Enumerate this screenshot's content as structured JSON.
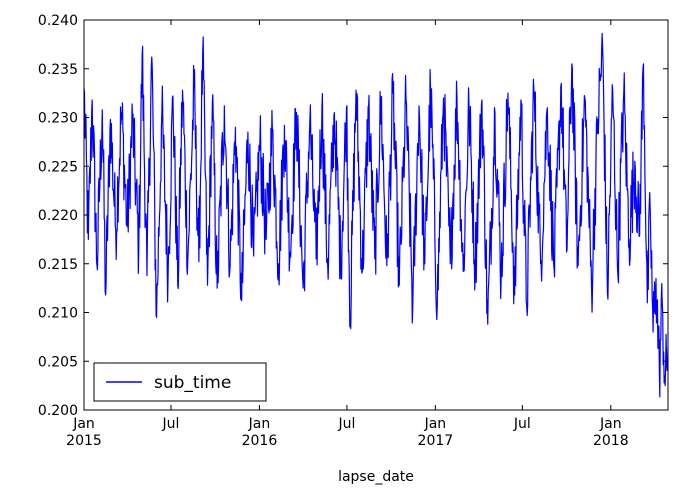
{
  "chart_data": {
    "type": "line",
    "title": "",
    "xlabel": "lapse_date",
    "ylabel": "",
    "x_start": "2015-01-01",
    "x_end": "2018-04-30",
    "x_ticks": [
      {
        "date": "2015-01-01",
        "label": "Jan",
        "label2": "2015"
      },
      {
        "date": "2015-07-01",
        "label": "Jul",
        "label2": ""
      },
      {
        "date": "2016-01-01",
        "label": "Jan",
        "label2": "2016"
      },
      {
        "date": "2016-07-01",
        "label": "Jul",
        "label2": ""
      },
      {
        "date": "2017-01-01",
        "label": "Jan",
        "label2": "2017"
      },
      {
        "date": "2017-07-01",
        "label": "Jul",
        "label2": ""
      },
      {
        "date": "2018-01-01",
        "label": "Jan",
        "label2": "2018"
      }
    ],
    "ylim": [
      0.2,
      0.24
    ],
    "y_ticks": [
      "0.200",
      "0.205",
      "0.210",
      "0.215",
      "0.220",
      "0.225",
      "0.230",
      "0.235",
      "0.240"
    ],
    "grid": false,
    "legend": {
      "position": "lower-left",
      "entries": [
        "sub_time"
      ]
    },
    "series": [
      {
        "name": "sub_time",
        "color": "#0000ff",
        "frequency": "daily",
        "points": [
          [
            "2015-01-01",
            0.233
          ],
          [
            "2015-01-10",
            0.2175
          ],
          [
            "2015-01-18",
            0.2318
          ],
          [
            "2015-01-28",
            0.2148
          ],
          [
            "2015-02-08",
            0.2308
          ],
          [
            "2015-02-15",
            0.2118
          ],
          [
            "2015-02-25",
            0.2298
          ],
          [
            "2015-03-08",
            0.2185
          ],
          [
            "2015-03-20",
            0.2305
          ],
          [
            "2015-04-01",
            0.2188
          ],
          [
            "2015-04-12",
            0.2298
          ],
          [
            "2015-04-25",
            0.2165
          ],
          [
            "2015-05-02",
            0.2365
          ],
          [
            "2015-05-12",
            0.2138
          ],
          [
            "2015-05-22",
            0.2362
          ],
          [
            "2015-06-01",
            0.2095
          ],
          [
            "2015-06-12",
            0.2305
          ],
          [
            "2015-06-25",
            0.214
          ],
          [
            "2015-07-05",
            0.2322
          ],
          [
            "2015-07-15",
            0.2128
          ],
          [
            "2015-07-25",
            0.2328
          ],
          [
            "2015-08-05",
            0.2155
          ],
          [
            "2015-08-18",
            0.233
          ],
          [
            "2015-08-28",
            0.2152
          ],
          [
            "2015-09-05",
            0.2368
          ],
          [
            "2015-09-15",
            0.2128
          ],
          [
            "2015-09-25",
            0.2315
          ],
          [
            "2015-10-05",
            0.2125
          ],
          [
            "2015-10-20",
            0.2312
          ],
          [
            "2015-11-01",
            0.2148
          ],
          [
            "2015-11-12",
            0.229
          ],
          [
            "2015-11-25",
            0.2112
          ],
          [
            "2015-12-08",
            0.2285
          ],
          [
            "2015-12-20",
            0.2158
          ],
          [
            "2016-01-02",
            0.2275
          ],
          [
            "2016-01-15",
            0.2175
          ],
          [
            "2016-01-28",
            0.2285
          ],
          [
            "2016-02-10",
            0.215
          ],
          [
            "2016-02-22",
            0.2292
          ],
          [
            "2016-03-05",
            0.2162
          ],
          [
            "2016-03-18",
            0.2305
          ],
          [
            "2016-04-01",
            0.2125
          ],
          [
            "2016-04-15",
            0.2298
          ],
          [
            "2016-04-28",
            0.2155
          ],
          [
            "2016-05-10",
            0.231
          ],
          [
            "2016-05-22",
            0.2148
          ],
          [
            "2016-06-05",
            0.2305
          ],
          [
            "2016-06-18",
            0.215
          ],
          [
            "2016-06-30",
            0.231
          ],
          [
            "2016-07-08",
            0.2095
          ],
          [
            "2016-07-20",
            0.2328
          ],
          [
            "2016-08-02",
            0.2142
          ],
          [
            "2016-08-15",
            0.231
          ],
          [
            "2016-08-28",
            0.2155
          ],
          [
            "2016-09-10",
            0.2318
          ],
          [
            "2016-09-22",
            0.2148
          ],
          [
            "2016-10-05",
            0.2325
          ],
          [
            "2016-10-18",
            0.2128
          ],
          [
            "2016-11-01",
            0.2318
          ],
          [
            "2016-11-15",
            0.2105
          ],
          [
            "2016-11-28",
            0.2312
          ],
          [
            "2016-12-10",
            0.215
          ],
          [
            "2016-12-22",
            0.2328
          ],
          [
            "2017-01-05",
            0.2108
          ],
          [
            "2017-01-18",
            0.232
          ],
          [
            "2017-02-01",
            0.215
          ],
          [
            "2017-02-15",
            0.232
          ],
          [
            "2017-02-28",
            0.2142
          ],
          [
            "2017-03-12",
            0.2312
          ],
          [
            "2017-03-25",
            0.2148
          ],
          [
            "2017-04-08",
            0.2318
          ],
          [
            "2017-04-20",
            0.2088
          ],
          [
            "2017-05-05",
            0.2305
          ],
          [
            "2017-05-18",
            0.2138
          ],
          [
            "2017-06-01",
            0.2325
          ],
          [
            "2017-06-15",
            0.2118
          ],
          [
            "2017-06-28",
            0.2318
          ],
          [
            "2017-07-10",
            0.2108
          ],
          [
            "2017-07-25",
            0.2328
          ],
          [
            "2017-08-08",
            0.215
          ],
          [
            "2017-08-22",
            0.231
          ],
          [
            "2017-09-05",
            0.2145
          ],
          [
            "2017-09-20",
            0.2335
          ],
          [
            "2017-10-01",
            0.2162
          ],
          [
            "2017-10-12",
            0.2355
          ],
          [
            "2017-10-25",
            0.2148
          ],
          [
            "2017-11-08",
            0.232
          ],
          [
            "2017-11-22",
            0.2125
          ],
          [
            "2017-12-05",
            0.2298
          ],
          [
            "2017-12-15",
            0.2372
          ],
          [
            "2017-12-25",
            0.212
          ],
          [
            "2018-01-05",
            0.2328
          ],
          [
            "2018-01-15",
            0.2145
          ],
          [
            "2018-01-28",
            0.2325
          ],
          [
            "2018-02-08",
            0.2175
          ],
          [
            "2018-02-20",
            0.2255
          ],
          [
            "2018-03-01",
            0.2178
          ],
          [
            "2018-03-10",
            0.2355
          ],
          [
            "2018-03-18",
            0.211
          ],
          [
            "2018-03-24",
            0.2205
          ],
          [
            "2018-03-30",
            0.208
          ],
          [
            "2018-04-05",
            0.2135
          ],
          [
            "2018-04-12",
            0.204
          ],
          [
            "2018-04-18",
            0.211
          ],
          [
            "2018-04-24",
            0.2025
          ],
          [
            "2018-04-30",
            0.2065
          ]
        ]
      }
    ]
  }
}
